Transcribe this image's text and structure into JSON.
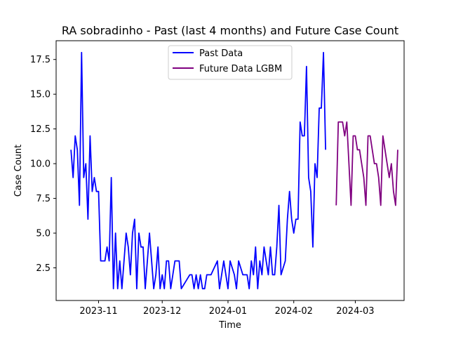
{
  "chart_data": {
    "type": "line",
    "title": "RA sobradinho - Past (last 4 months) and Future Case Count",
    "xlabel": "Time",
    "ylabel": "Case Count",
    "xlim": [
      "2023-10-12",
      "2024-03-24"
    ],
    "ylim": [
      0.15,
      18.85
    ],
    "x_ticks": [
      {
        "date": "2023-11-01",
        "label": "2023-11"
      },
      {
        "date": "2023-12-01",
        "label": "2023-12"
      },
      {
        "date": "2024-01-01",
        "label": "2024-01"
      },
      {
        "date": "2024-02-01",
        "label": "2024-02"
      },
      {
        "date": "2024-03-01",
        "label": "2024-03"
      }
    ],
    "y_ticks": [
      {
        "value": 2.5,
        "label": "2.5"
      },
      {
        "value": 5.0,
        "label": "5.0"
      },
      {
        "value": 7.5,
        "label": "7.5"
      },
      {
        "value": 10.0,
        "label": "10.0"
      },
      {
        "value": 12.5,
        "label": "12.5"
      },
      {
        "value": 15.0,
        "label": "15.0"
      },
      {
        "value": 17.5,
        "label": "17.5"
      }
    ],
    "grid": false,
    "legend_position": "upper center",
    "series": [
      {
        "name": "Past Data",
        "color": "#0000ff",
        "x_start": "2023-10-19",
        "values": [
          11,
          9,
          12,
          11,
          7,
          18,
          9,
          10,
          6,
          12,
          8,
          9,
          8,
          8,
          3,
          3,
          3,
          4,
          3,
          9,
          1,
          5,
          1,
          3,
          1,
          3,
          5,
          4,
          2,
          5,
          6,
          1,
          5,
          4,
          4,
          1,
          3,
          5,
          3,
          1,
          2,
          4,
          1,
          2,
          1,
          3,
          3,
          1,
          2,
          3,
          3,
          3,
          1,
          1.25,
          1.5,
          1.75,
          2,
          2,
          1,
          2,
          1,
          2,
          1,
          1,
          2,
          2,
          2,
          2.3333,
          2.6667,
          3,
          1,
          2,
          3,
          2,
          1,
          3,
          2.5,
          2,
          1,
          3,
          2.5,
          2,
          2,
          2,
          1,
          3,
          2,
          4,
          1,
          3,
          2,
          4,
          3,
          2,
          4,
          2,
          2,
          4,
          7,
          2,
          2.5,
          3,
          6,
          8,
          6,
          5,
          6,
          6,
          13,
          12,
          12,
          17,
          9,
          8,
          4,
          10,
          9,
          14,
          14,
          18,
          11
        ]
      },
      {
        "name": "Future Data LGBM",
        "color": "#800080",
        "x_start": "2024-02-21",
        "values": [
          7,
          13,
          13,
          13,
          12,
          13,
          10,
          7,
          12,
          12,
          11,
          11,
          10,
          9,
          7,
          12,
          12,
          11,
          10,
          10,
          9,
          7,
          12,
          11,
          10,
          9,
          10,
          8,
          7,
          11
        ]
      }
    ]
  }
}
